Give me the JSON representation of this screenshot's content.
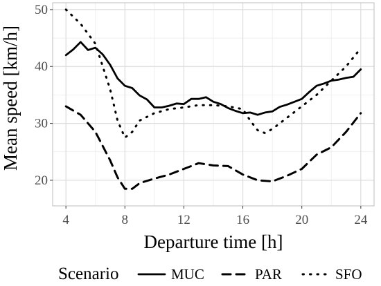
{
  "chart_data": {
    "type": "line",
    "title": "",
    "xlabel": "Departure time [h]",
    "ylabel": "Mean speed [km/h]",
    "xlim": [
      3.1,
      24.9
    ],
    "ylim": [
      15.5,
      51.2
    ],
    "xticks": [
      4,
      8,
      12,
      16,
      20,
      24
    ],
    "yticks": [
      20,
      30,
      40,
      50
    ],
    "grid": true,
    "legend": {
      "title": "Scenario",
      "position": "bottom",
      "entries": [
        "MUC",
        "PAR",
        "SFO"
      ]
    },
    "series": [
      {
        "name": "MUC",
        "dash": "solid",
        "points": [
          [
            4,
            42
          ],
          [
            4.5,
            43
          ],
          [
            5,
            44.3
          ],
          [
            5.5,
            42.9
          ],
          [
            6,
            43.3
          ],
          [
            6.5,
            42.1
          ],
          [
            7,
            40.3
          ],
          [
            7.5,
            37.9
          ],
          [
            8,
            36.6
          ],
          [
            8.5,
            36.2
          ],
          [
            9,
            34.9
          ],
          [
            9.5,
            34.2
          ],
          [
            10,
            32.8
          ],
          [
            10.5,
            32.8
          ],
          [
            11,
            33.1
          ],
          [
            11.5,
            33.5
          ],
          [
            12,
            33.4
          ],
          [
            12.5,
            34.3
          ],
          [
            13,
            34.3
          ],
          [
            13.5,
            34.6
          ],
          [
            14,
            33.8
          ],
          [
            14.5,
            33.4
          ],
          [
            15,
            32.7
          ],
          [
            15.5,
            32.2
          ],
          [
            16,
            31.8
          ],
          [
            16.5,
            31.9
          ],
          [
            17,
            31.5
          ],
          [
            17.5,
            31.9
          ],
          [
            18,
            32.1
          ],
          [
            18.5,
            32.9
          ],
          [
            19,
            33.3
          ],
          [
            19.5,
            33.8
          ],
          [
            20,
            34.3
          ],
          [
            20.5,
            35.5
          ],
          [
            21,
            36.6
          ],
          [
            21.5,
            37
          ],
          [
            22,
            37.5
          ],
          [
            22.5,
            37.7
          ],
          [
            23,
            38
          ],
          [
            23.5,
            38.2
          ],
          [
            24,
            39.5
          ]
        ]
      },
      {
        "name": "PAR",
        "dash": "dashed",
        "points": [
          [
            4,
            33
          ],
          [
            5,
            31.5
          ],
          [
            6,
            28.5
          ],
          [
            7,
            23.5
          ],
          [
            7.5,
            20.5
          ],
          [
            8,
            18.5
          ],
          [
            8.5,
            18.5
          ],
          [
            9,
            19.5
          ],
          [
            10,
            20.3
          ],
          [
            11,
            21
          ],
          [
            12,
            22
          ],
          [
            13,
            23
          ],
          [
            14,
            22.6
          ],
          [
            15,
            22.5
          ],
          [
            16,
            21
          ],
          [
            17,
            20
          ],
          [
            18,
            19.8
          ],
          [
            19,
            20.8
          ],
          [
            20,
            22
          ],
          [
            21,
            24.5
          ],
          [
            22,
            25.8
          ],
          [
            23,
            28.5
          ],
          [
            24,
            31.8
          ]
        ]
      },
      {
        "name": "SFO",
        "dash": "dotted",
        "points": [
          [
            4,
            50
          ],
          [
            5,
            47.5
          ],
          [
            6,
            44
          ],
          [
            7,
            36
          ],
          [
            7.5,
            30.5
          ],
          [
            8,
            27.5
          ],
          [
            8.5,
            28.5
          ],
          [
            9,
            30.5
          ],
          [
            10,
            31.8
          ],
          [
            11,
            32.5
          ],
          [
            12,
            32.8
          ],
          [
            13,
            33.2
          ],
          [
            14,
            33.2
          ],
          [
            15,
            33
          ],
          [
            16,
            32.5
          ],
          [
            16.5,
            30.5
          ],
          [
            17,
            28.8
          ],
          [
            17.5,
            28.3
          ],
          [
            18,
            29
          ],
          [
            19,
            31
          ],
          [
            20,
            33
          ],
          [
            21,
            35
          ],
          [
            22,
            37.5
          ],
          [
            23,
            40
          ],
          [
            24,
            43.2
          ]
        ]
      }
    ]
  }
}
